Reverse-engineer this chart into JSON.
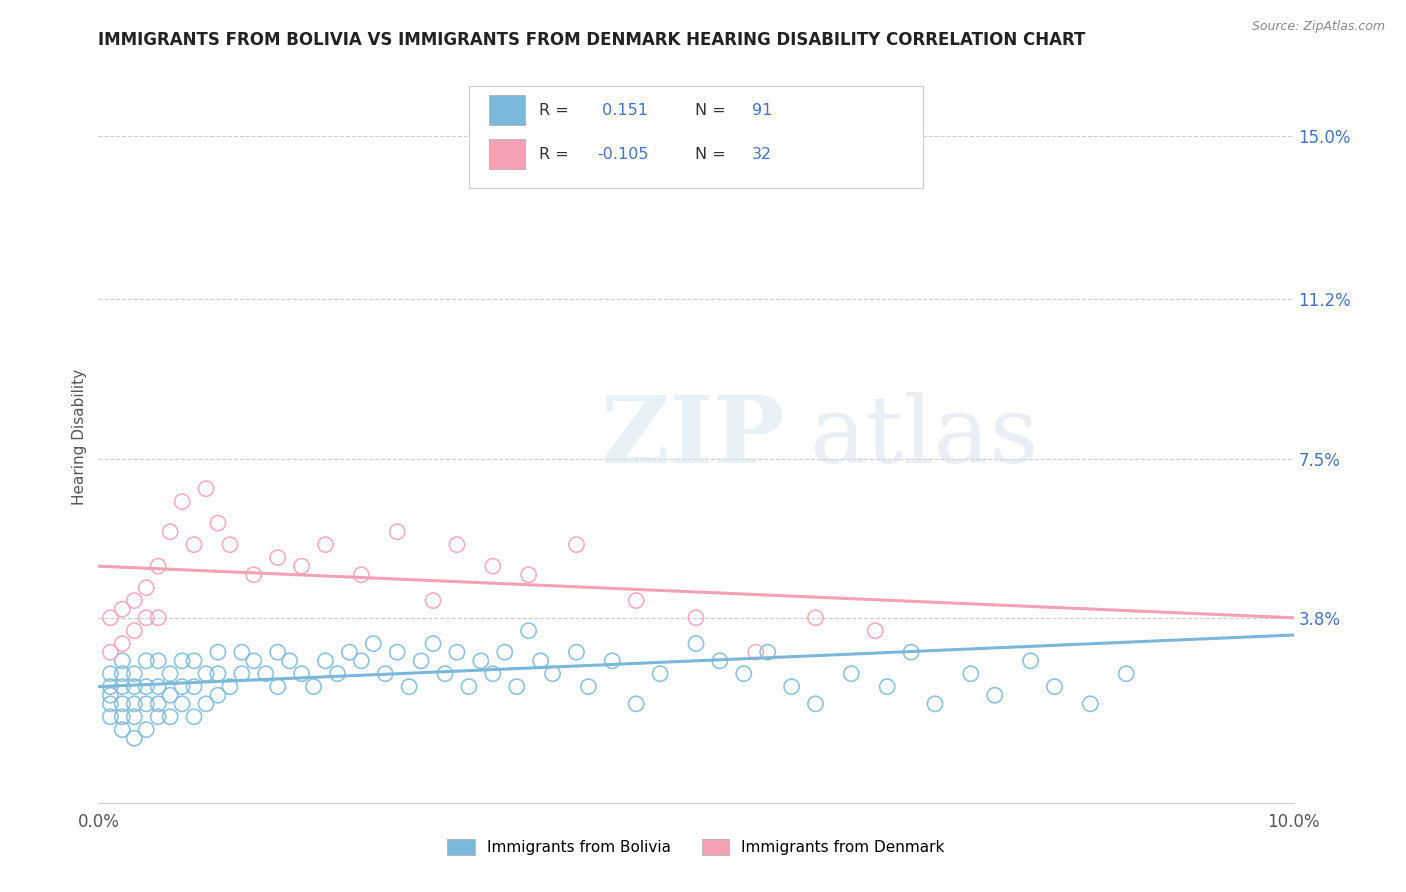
{
  "title": "IMMIGRANTS FROM BOLIVIA VS IMMIGRANTS FROM DENMARK HEARING DISABILITY CORRELATION CHART",
  "source": "Source: ZipAtlas.com",
  "ylabel": "Hearing Disability",
  "xlim": [
    0.0,
    0.1
  ],
  "ylim": [
    -0.005,
    0.165
  ],
  "xtick_vals": [
    0.0,
    0.1
  ],
  "xtick_labels": [
    "0.0%",
    "10.0%"
  ],
  "ytick_vals": [
    0.038,
    0.075,
    0.112,
    0.15
  ],
  "ytick_labels": [
    "3.8%",
    "7.5%",
    "11.2%",
    "15.0%"
  ],
  "bolivia_color": "#7ab8d9",
  "denmark_color": "#f4a0b5",
  "bolivia_R": 0.151,
  "bolivia_N": 91,
  "denmark_R": -0.105,
  "denmark_N": 32,
  "watermark_zip": "ZIP",
  "watermark_atlas": "atlas",
  "background_color": "#ffffff",
  "grid_color": "#cccccc",
  "blue_text_color": "#4472c4",
  "bolivia_trend_start": 0.022,
  "bolivia_trend_end": 0.034,
  "denmark_trend_start": 0.05,
  "denmark_trend_end": 0.038,
  "bolivia_scatter_x": [
    0.001,
    0.001,
    0.001,
    0.001,
    0.001,
    0.002,
    0.002,
    0.002,
    0.002,
    0.002,
    0.002,
    0.003,
    0.003,
    0.003,
    0.003,
    0.003,
    0.004,
    0.004,
    0.004,
    0.004,
    0.005,
    0.005,
    0.005,
    0.005,
    0.006,
    0.006,
    0.006,
    0.007,
    0.007,
    0.007,
    0.008,
    0.008,
    0.008,
    0.009,
    0.009,
    0.01,
    0.01,
    0.01,
    0.011,
    0.012,
    0.012,
    0.013,
    0.014,
    0.015,
    0.015,
    0.016,
    0.017,
    0.018,
    0.019,
    0.02,
    0.021,
    0.022,
    0.023,
    0.024,
    0.025,
    0.026,
    0.027,
    0.028,
    0.029,
    0.03,
    0.031,
    0.032,
    0.033,
    0.034,
    0.035,
    0.036,
    0.037,
    0.038,
    0.04,
    0.041,
    0.043,
    0.045,
    0.047,
    0.05,
    0.052,
    0.054,
    0.056,
    0.058,
    0.06,
    0.063,
    0.066,
    0.068,
    0.07,
    0.073,
    0.075,
    0.078,
    0.08,
    0.083,
    0.086
  ],
  "bolivia_scatter_y": [
    0.015,
    0.018,
    0.02,
    0.022,
    0.025,
    0.012,
    0.015,
    0.018,
    0.022,
    0.025,
    0.028,
    0.01,
    0.015,
    0.018,
    0.022,
    0.025,
    0.012,
    0.018,
    0.022,
    0.028,
    0.015,
    0.018,
    0.022,
    0.028,
    0.015,
    0.02,
    0.025,
    0.018,
    0.022,
    0.028,
    0.015,
    0.022,
    0.028,
    0.018,
    0.025,
    0.02,
    0.025,
    0.03,
    0.022,
    0.025,
    0.03,
    0.028,
    0.025,
    0.022,
    0.03,
    0.028,
    0.025,
    0.022,
    0.028,
    0.025,
    0.03,
    0.028,
    0.032,
    0.025,
    0.03,
    0.022,
    0.028,
    0.032,
    0.025,
    0.03,
    0.022,
    0.028,
    0.025,
    0.03,
    0.022,
    0.035,
    0.028,
    0.025,
    0.03,
    0.022,
    0.028,
    0.018,
    0.025,
    0.032,
    0.028,
    0.025,
    0.03,
    0.022,
    0.018,
    0.025,
    0.022,
    0.03,
    0.018,
    0.025,
    0.02,
    0.028,
    0.022,
    0.018,
    0.025
  ],
  "denmark_scatter_x": [
    0.001,
    0.001,
    0.002,
    0.002,
    0.003,
    0.003,
    0.004,
    0.004,
    0.005,
    0.005,
    0.006,
    0.007,
    0.008,
    0.009,
    0.01,
    0.011,
    0.013,
    0.015,
    0.017,
    0.019,
    0.022,
    0.025,
    0.028,
    0.03,
    0.033,
    0.036,
    0.04,
    0.045,
    0.05,
    0.055,
    0.06,
    0.065
  ],
  "denmark_scatter_y": [
    0.03,
    0.038,
    0.032,
    0.04,
    0.035,
    0.042,
    0.038,
    0.045,
    0.038,
    0.05,
    0.058,
    0.065,
    0.055,
    0.068,
    0.06,
    0.055,
    0.048,
    0.052,
    0.05,
    0.055,
    0.048,
    0.058,
    0.042,
    0.055,
    0.05,
    0.048,
    0.055,
    0.042,
    0.038,
    0.03,
    0.038,
    0.035
  ]
}
